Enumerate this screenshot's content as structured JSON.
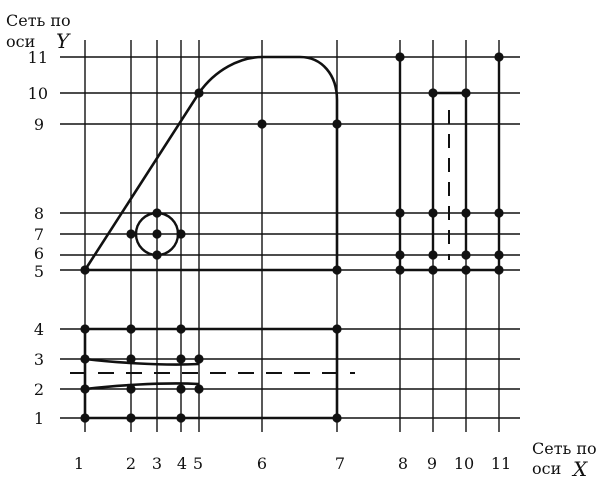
{
  "diagram": {
    "y_caption_line1": "Сеть по",
    "y_caption_line2": "оси",
    "y_axis_letter": "Y",
    "x_caption_line1": "Сеть по",
    "x_caption_line2": "оси",
    "x_axis_letter": "X",
    "x_tick_labels": [
      "1",
      "2",
      "3",
      "4",
      "5",
      "6",
      "7",
      "8",
      "9",
      "10",
      "11"
    ],
    "y_tick_labels": [
      "1",
      "2",
      "3",
      "4",
      "5",
      "6",
      "7",
      "8",
      "9",
      "10",
      "11"
    ],
    "colors": {
      "ink": "#111111",
      "background": "#ffffff"
    }
  }
}
